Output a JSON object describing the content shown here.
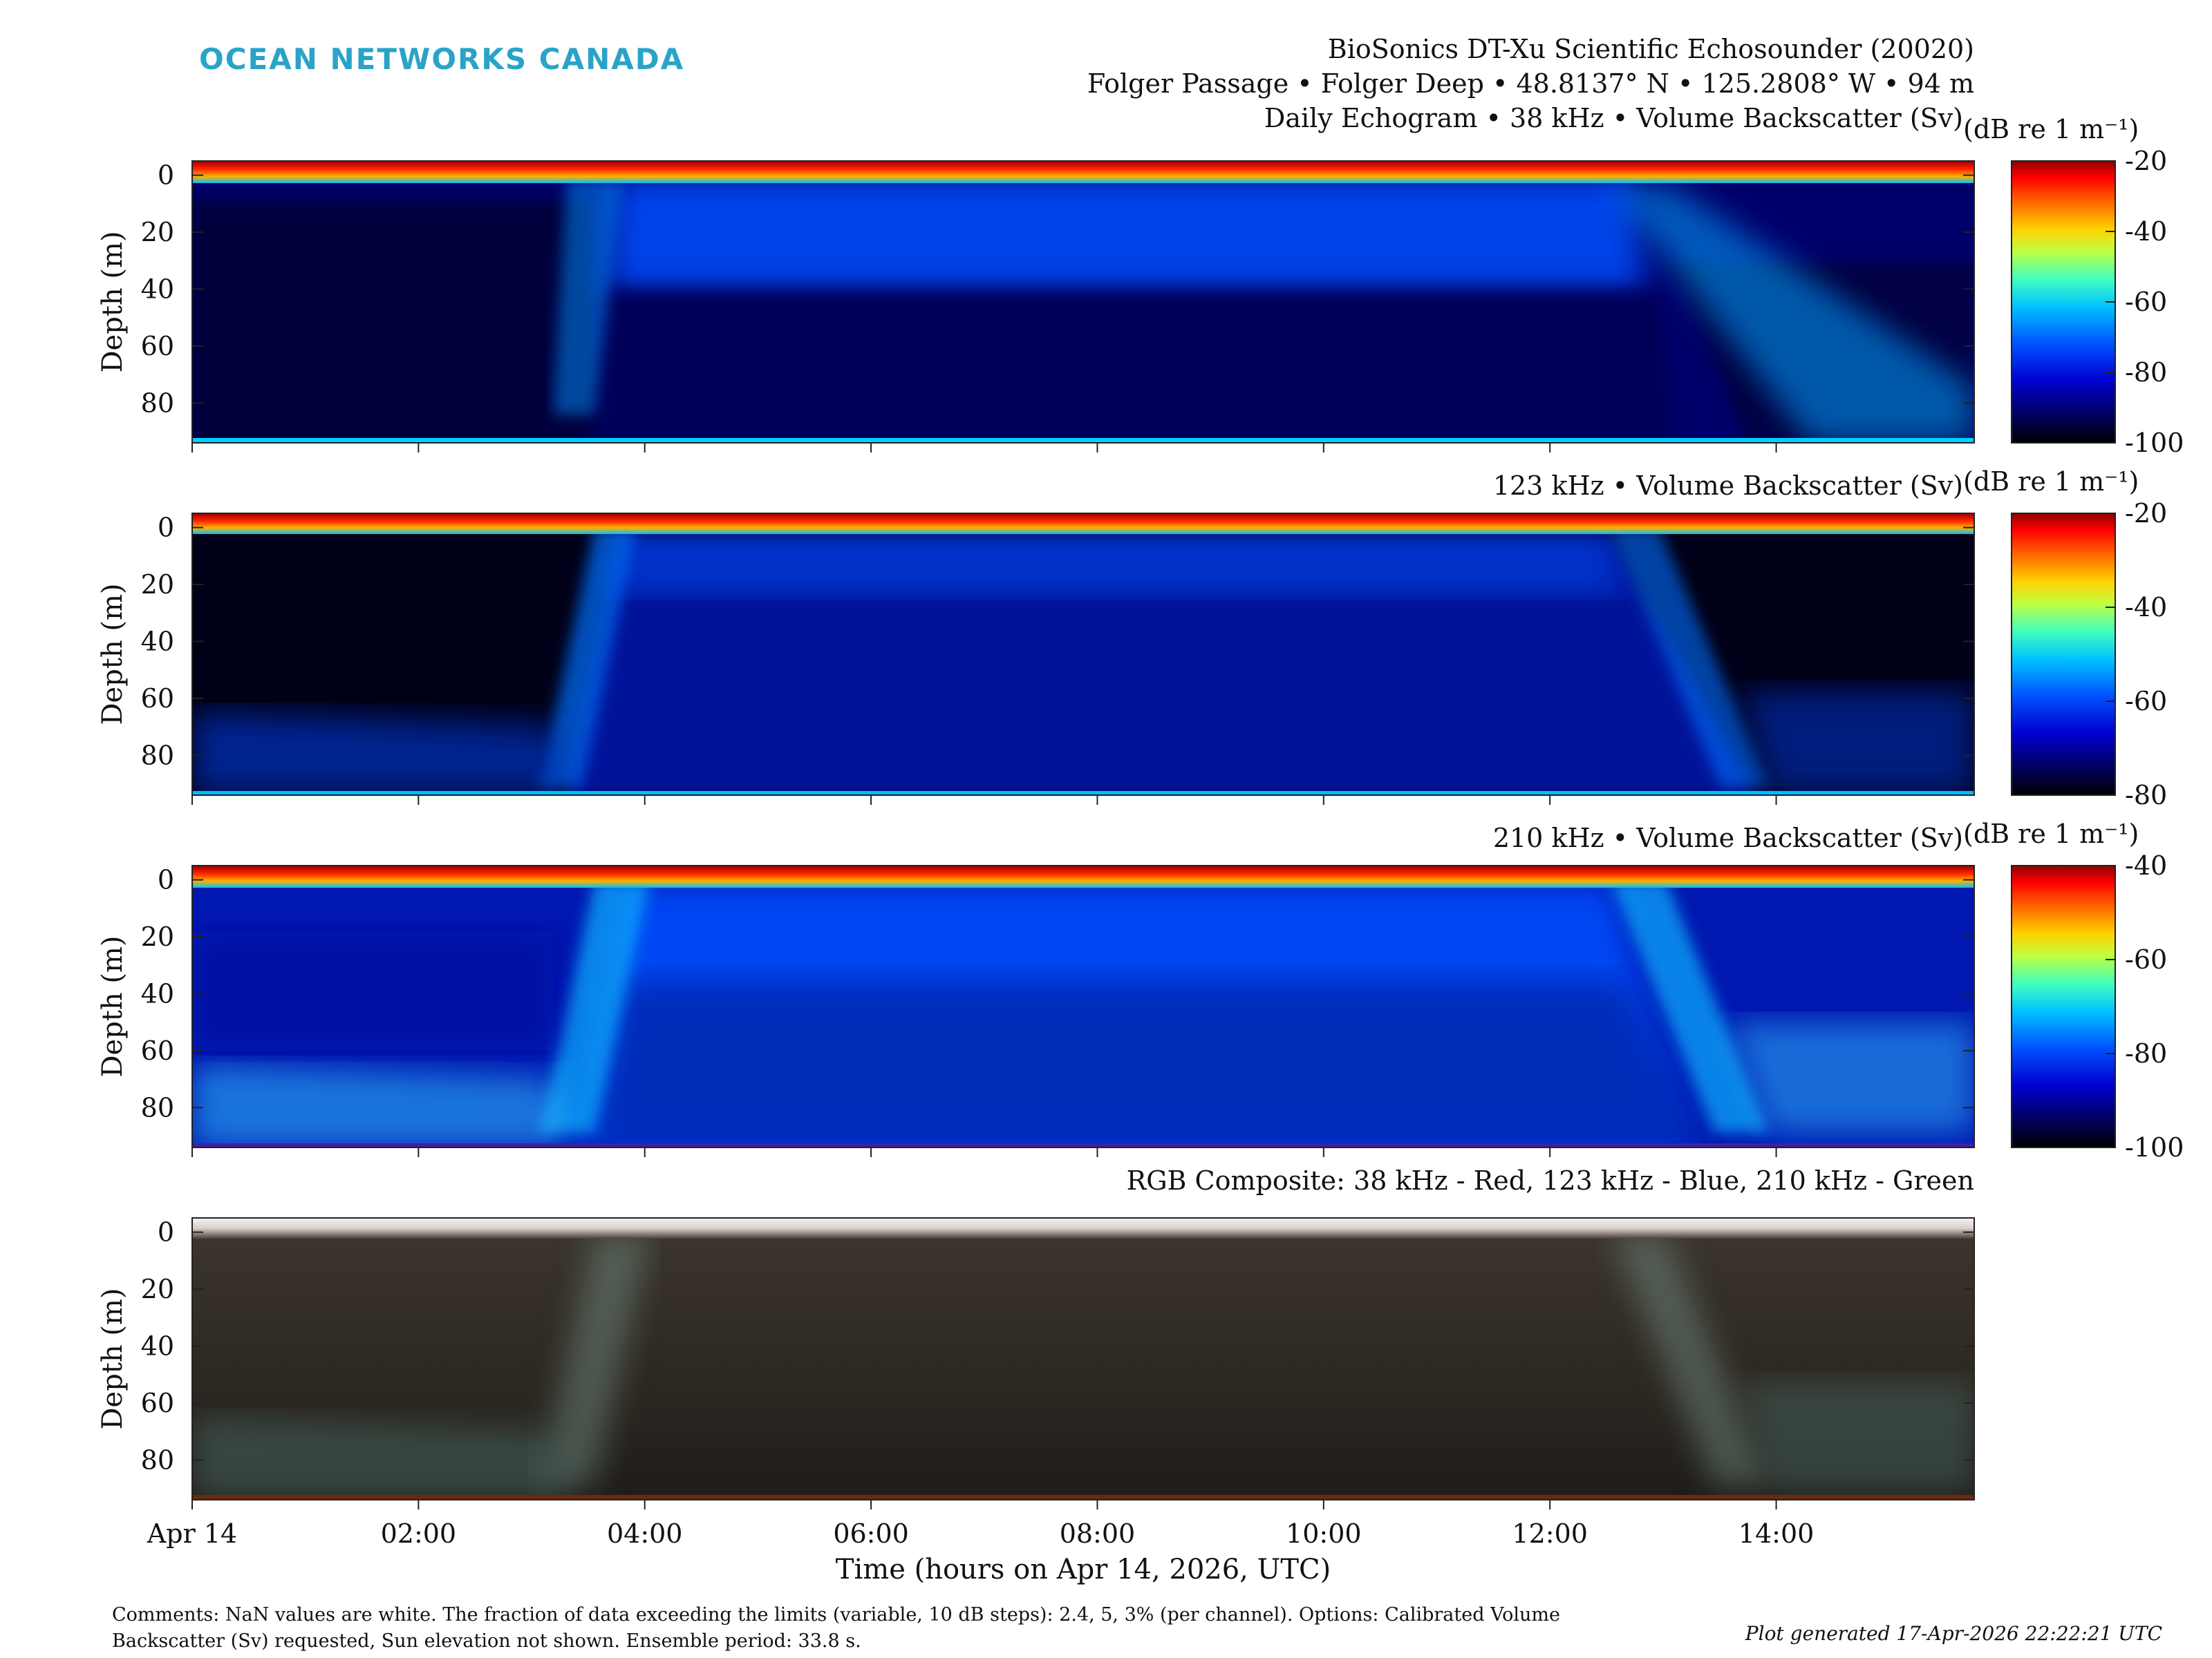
{
  "header": {
    "logo": "OCEAN NETWORKS CANADA",
    "title_line1": "BioSonics DT-Xu Scientific Echosounder (20020)",
    "title_line2": "Folger Passage • Folger Deep • 48.8137° N • 125.2808° W • 94 m",
    "title_line3": "Daily Echogram • 38 kHz • Volume Backscatter (Sv)"
  },
  "footer": {
    "comments_line1": "Comments: NaN values are white. The fraction of data exceeding the limits (variable, 10 dB steps): 2.4, 5, 3% (per channel). Options: Calibrated Volume",
    "comments_line2": "Backscatter (Sv) requested, Sun elevation not shown. Ensemble period: 33.8 s.",
    "generated": "Plot generated 17-Apr-2026 22:22:21 UTC"
  },
  "chart_data": [
    {
      "type": "heatmap",
      "title": "Daily Echogram • 38 kHz • Volume Backscatter (Sv)",
      "xlabel": "",
      "ylabel": "Depth (m)",
      "xlim": [
        0,
        15.75
      ],
      "ylim": [
        94,
        -5
      ],
      "x_tick_values": [
        0,
        2,
        4,
        6,
        8,
        10,
        12,
        14
      ],
      "y_tick_values": [
        0,
        20,
        40,
        60,
        80
      ],
      "colorbar_label": "(dB re 1 m⁻¹)",
      "clim": [
        -100,
        -20
      ],
      "colorbar_ticks": [
        -20,
        -40,
        -60,
        -80,
        -100
      ]
    },
    {
      "type": "heatmap",
      "title": "123 kHz • Volume Backscatter (Sv)",
      "xlabel": "",
      "ylabel": "Depth (m)",
      "xlim": [
        0,
        15.75
      ],
      "ylim": [
        94,
        -5
      ],
      "x_tick_values": [
        0,
        2,
        4,
        6,
        8,
        10,
        12,
        14
      ],
      "y_tick_values": [
        0,
        20,
        40,
        60,
        80
      ],
      "colorbar_label": "(dB re 1 m⁻¹)",
      "clim": [
        -80,
        -20
      ],
      "colorbar_ticks": [
        -20,
        -40,
        -60,
        -80
      ]
    },
    {
      "type": "heatmap",
      "title": "210 kHz • Volume Backscatter (Sv)",
      "xlabel": "",
      "ylabel": "Depth (m)",
      "xlim": [
        0,
        15.75
      ],
      "ylim": [
        94,
        -5
      ],
      "x_tick_values": [
        0,
        2,
        4,
        6,
        8,
        10,
        12,
        14
      ],
      "y_tick_values": [
        0,
        20,
        40,
        60,
        80
      ],
      "colorbar_label": "(dB re 1 m⁻¹)",
      "clim": [
        -100,
        -40
      ],
      "colorbar_ticks": [
        -40,
        -60,
        -80,
        -100
      ]
    },
    {
      "type": "heatmap",
      "title": "RGB Composite: 38 kHz - Red, 123 kHz - Blue, 210 kHz - Green",
      "xlabel": "Time (hours on Apr 14, 2026, UTC)",
      "ylabel": "Depth (m)",
      "xlim": [
        0,
        15.75
      ],
      "ylim": [
        94,
        -5
      ],
      "x_tick_values": [
        0,
        2,
        4,
        6,
        8,
        10,
        12,
        14
      ],
      "x_tick_labels": [
        "Apr 14",
        "02:00",
        "04:00",
        "06:00",
        "08:00",
        "10:00",
        "12:00",
        "14:00"
      ],
      "y_tick_values": [
        0,
        20,
        40,
        60,
        80
      ]
    }
  ],
  "colors": {
    "logo": "#2aa3c8",
    "colormap_jet_stops": [
      "#000000",
      "#00008f",
      "#0000ff",
      "#0080ff",
      "#00ffff",
      "#80ff80",
      "#ffff00",
      "#ff8000",
      "#ff0000",
      "#800000"
    ],
    "composite_base": "#3a342c"
  }
}
